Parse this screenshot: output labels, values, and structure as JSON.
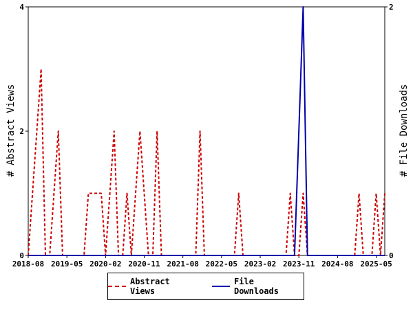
{
  "chart_data": {
    "type": "line",
    "x_tick_labels": [
      "2018-08",
      "2019-05",
      "2020-02",
      "2020-11",
      "2021-08",
      "2022-05",
      "2023-02",
      "2023-11",
      "2024-08",
      "2025-05"
    ],
    "x_range": [
      "2018-08",
      "2025-07"
    ],
    "y_left": {
      "label": "# Abstract Views",
      "range": [
        0,
        4
      ],
      "ticks": [
        "0",
        "2",
        "4"
      ]
    },
    "y_right": {
      "label": "# File Downloads",
      "range": [
        0,
        2
      ],
      "ticks": [
        "0",
        "2"
      ]
    },
    "legend_position": "bottom",
    "grid": false,
    "series": [
      {
        "name": "Abstract Views",
        "axis": "left",
        "color": "#cc0000",
        "style": "dashed",
        "points": [
          [
            "2018-08",
            0
          ],
          [
            "2018-09",
            1
          ],
          [
            "2018-10",
            2
          ],
          [
            "2018-11",
            3
          ],
          [
            "2018-12",
            0
          ],
          [
            "2019-01",
            0
          ],
          [
            "2019-02",
            1
          ],
          [
            "2019-03",
            2
          ],
          [
            "2019-04",
            0
          ],
          [
            "2019-05",
            0
          ],
          [
            "2019-06",
            0
          ],
          [
            "2019-07",
            0
          ],
          [
            "2019-08",
            0
          ],
          [
            "2019-09",
            0
          ],
          [
            "2019-10",
            1
          ],
          [
            "2019-11",
            1
          ],
          [
            "2019-12",
            1
          ],
          [
            "2020-01",
            1
          ],
          [
            "2020-02",
            0
          ],
          [
            "2020-03",
            1
          ],
          [
            "2020-04",
            2
          ],
          [
            "2020-05",
            0
          ],
          [
            "2020-06",
            0
          ],
          [
            "2020-07",
            1
          ],
          [
            "2020-08",
            0
          ],
          [
            "2020-09",
            1
          ],
          [
            "2020-10",
            2
          ],
          [
            "2020-11",
            1
          ],
          [
            "2020-12",
            0
          ],
          [
            "2021-01",
            0
          ],
          [
            "2021-02",
            2
          ],
          [
            "2021-03",
            0
          ],
          [
            "2021-04",
            0
          ],
          [
            "2021-05",
            0
          ],
          [
            "2021-06",
            0
          ],
          [
            "2021-07",
            0
          ],
          [
            "2021-08",
            0
          ],
          [
            "2021-09",
            0
          ],
          [
            "2021-10",
            0
          ],
          [
            "2021-11",
            0
          ],
          [
            "2021-12",
            2
          ],
          [
            "2022-01",
            0
          ],
          [
            "2022-02",
            0
          ],
          [
            "2022-03",
            0
          ],
          [
            "2022-04",
            0
          ],
          [
            "2022-05",
            0
          ],
          [
            "2022-06",
            0
          ],
          [
            "2022-07",
            0
          ],
          [
            "2022-08",
            0
          ],
          [
            "2022-09",
            1
          ],
          [
            "2022-10",
            0
          ],
          [
            "2022-11",
            0
          ],
          [
            "2022-12",
            0
          ],
          [
            "2023-01",
            0
          ],
          [
            "2023-02",
            0
          ],
          [
            "2023-03",
            0
          ],
          [
            "2023-04",
            0
          ],
          [
            "2023-05",
            0
          ],
          [
            "2023-06",
            0
          ],
          [
            "2023-07",
            0
          ],
          [
            "2023-08",
            0
          ],
          [
            "2023-09",
            1
          ],
          [
            "2023-10",
            0
          ],
          [
            "2023-11",
            0
          ],
          [
            "2023-12",
            1
          ],
          [
            "2024-01",
            0
          ],
          [
            "2024-02",
            0
          ],
          [
            "2024-03",
            0
          ],
          [
            "2024-04",
            0
          ],
          [
            "2024-05",
            0
          ],
          [
            "2024-06",
            0
          ],
          [
            "2024-07",
            0
          ],
          [
            "2024-08",
            0
          ],
          [
            "2024-09",
            0
          ],
          [
            "2024-10",
            0
          ],
          [
            "2024-11",
            0
          ],
          [
            "2024-12",
            0
          ],
          [
            "2025-01",
            1
          ],
          [
            "2025-02",
            0
          ],
          [
            "2025-03",
            0
          ],
          [
            "2025-04",
            0
          ],
          [
            "2025-05",
            1
          ],
          [
            "2025-06",
            0
          ],
          [
            "2025-07",
            1
          ]
        ]
      },
      {
        "name": "File Downloads",
        "axis": "right",
        "color": "#0000aa",
        "style": "solid",
        "points": [
          [
            "2018-08",
            0
          ],
          [
            "2023-10",
            0
          ],
          [
            "2023-11",
            1
          ],
          [
            "2023-12",
            2
          ],
          [
            "2024-01",
            0
          ],
          [
            "2025-07",
            0
          ]
        ]
      }
    ]
  }
}
